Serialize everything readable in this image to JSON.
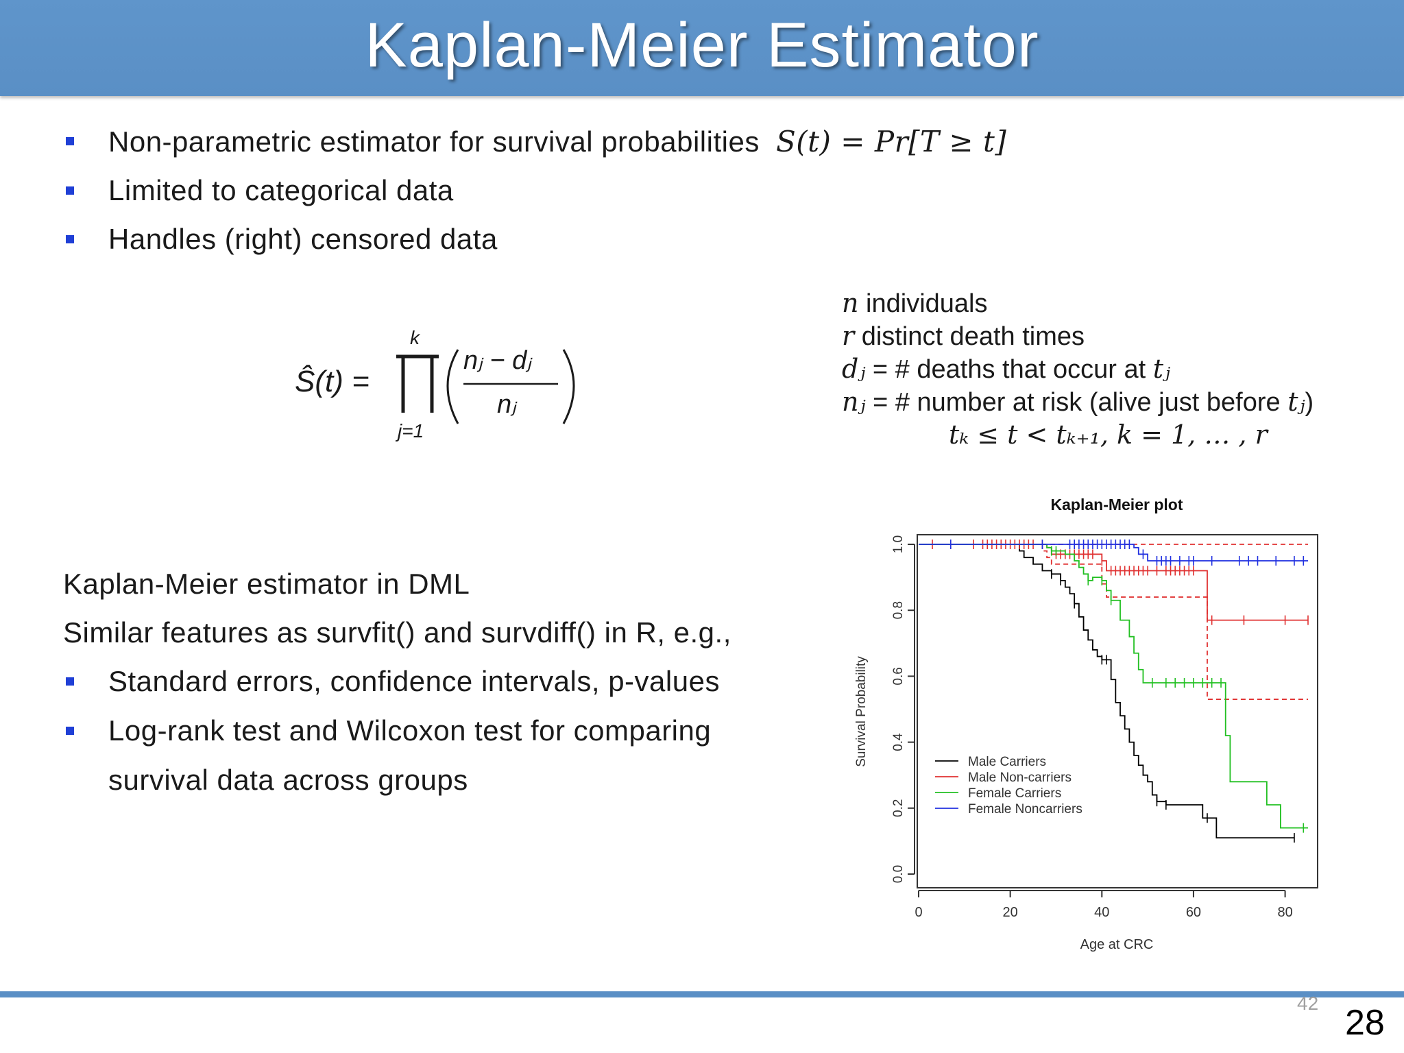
{
  "slide": {
    "title": "Kaplan-Meier  Estimator",
    "bullets_top": [
      {
        "text": "Non-parametric  estimator  for  survival  probabilities",
        "formula": "S(t) = Pr[T ≥ t]"
      },
      {
        "text": "Limited  to  categorical  data"
      },
      {
        "text": "Handles  (right)  censored  data"
      }
    ],
    "formula": {
      "lhs": "Ŝ(t) =",
      "upper_limit": "k",
      "lower_limit": "j=1",
      "numerator": "nⱼ − dⱼ",
      "denominator": "nⱼ"
    },
    "variables": [
      {
        "sym": "n",
        "text": " individuals"
      },
      {
        "sym": "r",
        "text": " distinct death times"
      },
      {
        "sym": "dⱼ",
        "text": " = # deaths that occur at ",
        "tail": "tⱼ"
      },
      {
        "sym": "nⱼ",
        "text": " = # number at risk (alive just before ",
        "tail": "tⱼ",
        "end": ")"
      },
      {
        "formula": "tₖ ≤ t < tₖ₊₁, k = 1, … , r"
      }
    ],
    "dml_heading": "Kaplan-Meier  estimator  in  DML",
    "dml_line2": "Similar  features  as  survfit()  and  survdiff()  in  R,  e.g.,",
    "bullets_bottom": [
      "Standard  errors,  confidence  intervals,  p-values",
      "Log-rank  test  and  Wilcoxon  test  for  comparing",
      "survival  data  across  groups"
    ],
    "page_small": "42",
    "page_number": "28"
  },
  "chart_data": {
    "type": "line",
    "step": true,
    "title": "Kaplan-Meier plot",
    "xlabel": "Age at CRC",
    "ylabel": "Survival Probability",
    "xlim": [
      0,
      85
    ],
    "ylim": [
      0,
      1
    ],
    "xticks": [
      0,
      20,
      40,
      60,
      80
    ],
    "yticks": [
      0.0,
      0.2,
      0.4,
      0.6,
      0.8,
      1.0
    ],
    "ytick_labels": [
      "0.0",
      "0.2",
      "0.4",
      "0.6",
      "0.8",
      "1.0"
    ],
    "legend_position": "bottom-left",
    "series": [
      {
        "name": "Male Carriers",
        "color": "#000000",
        "dashed": false,
        "x": [
          0,
          22,
          23,
          25,
          27,
          29,
          31,
          32,
          33,
          34,
          35,
          36,
          37,
          38,
          39,
          40,
          42,
          43,
          44,
          45,
          46,
          47,
          48,
          49,
          50,
          51,
          52,
          54,
          62,
          65,
          82
        ],
        "y": [
          1.0,
          0.98,
          0.96,
          0.94,
          0.92,
          0.91,
          0.89,
          0.87,
          0.85,
          0.82,
          0.78,
          0.74,
          0.71,
          0.68,
          0.66,
          0.65,
          0.59,
          0.52,
          0.48,
          0.44,
          0.4,
          0.36,
          0.33,
          0.3,
          0.28,
          0.24,
          0.22,
          0.21,
          0.17,
          0.11,
          0.11
        ],
        "censor_x": [
          29,
          31,
          34,
          40,
          41,
          52,
          54,
          63,
          82
        ]
      },
      {
        "name": "Male Non-carriers",
        "color": "#e03030",
        "dashed": false,
        "x": [
          0,
          28,
          29,
          40,
          41,
          62,
          63,
          85
        ],
        "y": [
          1.0,
          0.99,
          0.97,
          0.95,
          0.92,
          0.92,
          0.77,
          0.77
        ],
        "censor_x": [
          3,
          7,
          12,
          14,
          15,
          16,
          17,
          18,
          19,
          20,
          21,
          22,
          23,
          24,
          25,
          27,
          30,
          31,
          32,
          33,
          34,
          35,
          36,
          37,
          38,
          40,
          42,
          43,
          44,
          45,
          46,
          47,
          48,
          49,
          50,
          52,
          54,
          55,
          56,
          57,
          58,
          59,
          60,
          64,
          71,
          80,
          85
        ]
      },
      {
        "name": "Male Non-carriers CI upper",
        "color": "#e03030",
        "dashed": true,
        "ci": true,
        "x": [
          0,
          85
        ],
        "y": [
          1.0,
          1.0
        ]
      },
      {
        "name": "Male Non-carriers CI lower",
        "color": "#e03030",
        "dashed": true,
        "ci": true,
        "x": [
          0,
          27,
          28,
          29,
          40,
          41,
          62,
          63,
          85
        ],
        "y": [
          1.0,
          0.98,
          0.96,
          0.94,
          0.88,
          0.84,
          0.84,
          0.53,
          0.53
        ]
      },
      {
        "name": "Female Carriers",
        "color": "#22c022",
        "dashed": false,
        "x": [
          0,
          28,
          29,
          32,
          34,
          35,
          36,
          37,
          38,
          40,
          41,
          42,
          44,
          46,
          47,
          48,
          49,
          52,
          66,
          67,
          68,
          76,
          79,
          85
        ],
        "y": [
          1.0,
          0.99,
          0.98,
          0.97,
          0.95,
          0.93,
          0.91,
          0.89,
          0.9,
          0.89,
          0.86,
          0.83,
          0.77,
          0.72,
          0.67,
          0.62,
          0.58,
          0.58,
          0.58,
          0.42,
          0.28,
          0.21,
          0.14,
          0.14
        ],
        "censor_x": [
          29,
          30,
          37,
          40,
          42,
          51,
          54,
          56,
          58,
          60,
          62,
          64,
          66,
          84
        ]
      },
      {
        "name": "Female Noncarriers",
        "color": "#2030e0",
        "dashed": false,
        "x": [
          0,
          47,
          48,
          50,
          85
        ],
        "y": [
          1.0,
          0.99,
          0.97,
          0.95,
          0.95
        ],
        "censor_x": [
          7,
          27,
          33,
          34,
          35,
          36,
          37,
          38,
          39,
          40,
          41,
          42,
          43,
          44,
          45,
          46,
          49,
          52,
          53,
          54,
          55,
          57,
          59,
          60,
          64,
          70,
          72,
          74,
          78,
          82,
          84
        ]
      }
    ],
    "legend": [
      "Male Carriers",
      "Male Non-carriers",
      "Female Carriers",
      "Female Noncarriers"
    ]
  }
}
